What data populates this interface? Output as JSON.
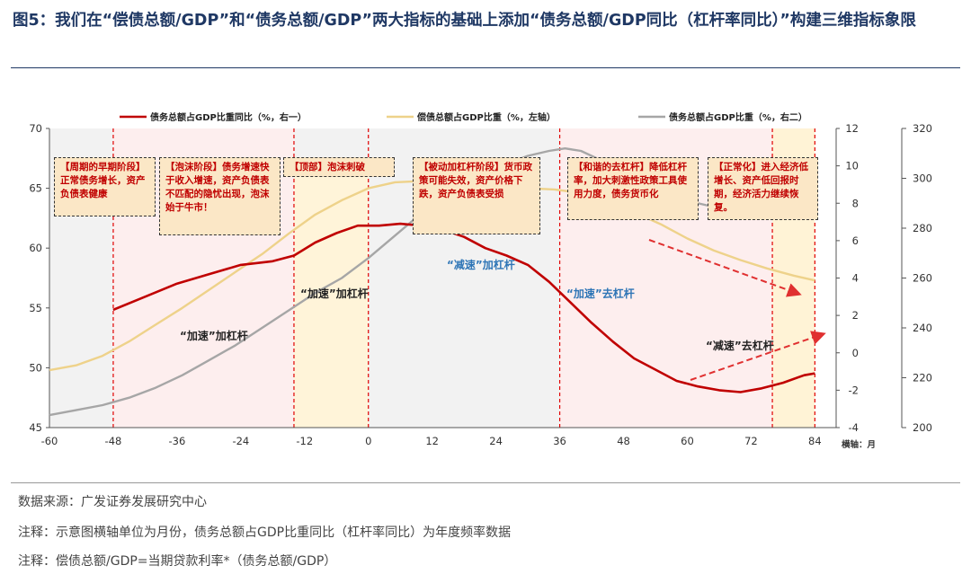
{
  "figure_title": "图5：我们在“偿债总额/GDP”和“债务总额/GDP”两大指标的基础上添加“债务总额/GDP同比（杠杆率同比）”构建三维指标象限",
  "notes": {
    "source": "数据来源：广发证券发展研究中心",
    "note1": "注释：示意图横轴单位为月份，债务总额占GDP比重同比（杠杆率同比）为年度频率数据",
    "note2": "注释：偿债总额/GDP=当期贷款利率*（债务总额/GDP）"
  },
  "chart_data": {
    "type": "line",
    "x_axis": {
      "label": "横轴：月",
      "ticks": [
        -60,
        -48,
        -36,
        -24,
        -12,
        0,
        12,
        24,
        36,
        48,
        60,
        72,
        84
      ],
      "range": [
        -60,
        88
      ]
    },
    "y_left": {
      "ticks": [
        45,
        50,
        55,
        60,
        65,
        70
      ],
      "range": [
        45,
        70
      ]
    },
    "y_right1": {
      "ticks": [
        -4,
        -2,
        0,
        2,
        4,
        6,
        8,
        10,
        12
      ],
      "range": [
        -4,
        12
      ]
    },
    "y_right2": {
      "ticks": [
        200,
        220,
        240,
        260,
        280,
        300,
        320
      ],
      "range": [
        200,
        320
      ]
    },
    "series": [
      {
        "name": "债务总额占GDP比重同比（%，右一）",
        "axis": "right1",
        "color": "#c00000",
        "x": [
          -48,
          -42,
          -36,
          -30,
          -24,
          -18,
          -14,
          -10,
          -6,
          -2,
          2,
          6,
          10,
          14,
          18,
          22,
          26,
          30,
          34,
          38,
          42,
          46,
          50,
          54,
          58,
          62,
          66,
          70,
          74,
          78,
          82,
          84
        ],
        "y": [
          2.3,
          3.0,
          3.7,
          4.2,
          4.7,
          4.9,
          5.2,
          5.9,
          6.4,
          6.8,
          6.8,
          6.9,
          6.8,
          6.6,
          6.2,
          5.6,
          5.2,
          4.7,
          3.8,
          2.7,
          1.6,
          0.6,
          -0.3,
          -0.9,
          -1.5,
          -1.8,
          -2.0,
          -2.1,
          -1.9,
          -1.6,
          -1.2,
          -1.1
        ]
      },
      {
        "name": "偿债总额占GDP比重（%，左轴）",
        "axis": "left",
        "color": "#eed28a",
        "x": [
          -60,
          -55,
          -50,
          -45,
          -40,
          -35,
          -30,
          -25,
          -20,
          -15,
          -10,
          -5,
          0,
          5,
          10,
          15,
          20,
          25,
          30,
          35,
          40,
          45,
          50,
          55,
          60,
          65,
          70,
          75,
          80,
          84
        ],
        "y": [
          49.8,
          50.2,
          51.0,
          52.2,
          53.6,
          55.0,
          56.5,
          58.0,
          59.5,
          61.2,
          62.8,
          64.0,
          65.0,
          65.5,
          65.6,
          65.4,
          65.1,
          65.0,
          65.0,
          64.9,
          64.6,
          63.8,
          63.0,
          62.0,
          60.8,
          59.8,
          59.0,
          58.3,
          57.7,
          57.3
        ]
      },
      {
        "name": "债务总额占GDP比重（%，右二）",
        "axis": "right2",
        "color": "#a6a6a6",
        "x": [
          -60,
          -55,
          -50,
          -45,
          -40,
          -35,
          -30,
          -25,
          -20,
          -15,
          -10,
          -5,
          0,
          5,
          10,
          15,
          20,
          25,
          30,
          34,
          37,
          40,
          44,
          48,
          52,
          56,
          60,
          64,
          68,
          72,
          76,
          80,
          84
        ],
        "y": [
          205,
          207,
          209,
          212,
          216,
          221,
          227,
          233,
          240,
          247,
          254,
          260,
          268,
          277,
          286,
          294,
          300,
          305,
          309,
          311,
          312,
          311,
          307,
          302,
          298,
          294,
          291,
          289,
          288,
          287,
          287,
          286,
          286
        ]
      }
    ],
    "stage_boundaries": [
      -48,
      -14,
      0,
      36,
      76,
      84
    ],
    "stage_labels": [
      {
        "text": "“加速”加杠杆",
        "color": "#222222"
      },
      {
        "text": "“加速”加杠杆",
        "color": "#222222"
      },
      {
        "text": "“减速”加杠杆",
        "color": "#2e75b6"
      },
      {
        "text": "“加速”去杠杆",
        "color": "#2e75b6"
      },
      {
        "text": "“减速”去杠杆",
        "color": "#222222"
      }
    ],
    "annotations": [
      "【周期的早期阶段】正常债务增长，资产负债表健康",
      "【泡沫阶段】债务增速快于收入增速，资产负债表不匹配的隐忧出现，泡沫始于牛市！",
      "【顶部】泡沫刺破",
      "【被动加杠杆阶段】货币政策可能失效，资产价格下跌，资产负债表受损",
      "【和谐的去杠杆】降低杠杆率，加大刺激性政策工具使用力度，债务货币化",
      "【正常化】进入经济低增长、资产低回报时期，经济活力继续恢复。"
    ]
  }
}
